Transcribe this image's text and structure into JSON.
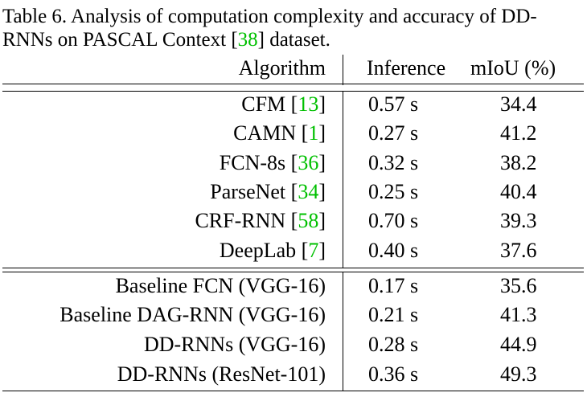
{
  "caption": {
    "prefix": "Table 6. Analysis of computation complexity and accuracy of DD-RNNs on PASCAL Context [",
    "ref": "38",
    "suffix": "] dataset."
  },
  "headers": {
    "algorithm": "Algorithm",
    "inference": "Inference",
    "miou": "mIoU (%)"
  },
  "group1": [
    {
      "name": "CFM",
      "ref": "13",
      "inference": "0.57 s",
      "miou": "34.4"
    },
    {
      "name": "CAMN",
      "ref": "1",
      "inference": "0.27 s",
      "miou": "41.2"
    },
    {
      "name": "FCN-8s",
      "ref": "36",
      "inference": "0.32 s",
      "miou": "38.2"
    },
    {
      "name": "ParseNet",
      "ref": "34",
      "inference": "0.25 s",
      "miou": "40.4"
    },
    {
      "name": "CRF-RNN",
      "ref": "58",
      "inference": "0.70 s",
      "miou": "39.3"
    },
    {
      "name": "DeepLab",
      "ref": "7",
      "inference": "0.40 s",
      "miou": "37.6"
    }
  ],
  "group2": [
    {
      "name": "Baseline FCN (VGG-16)",
      "inference": "0.17 s",
      "miou": "35.6"
    },
    {
      "name": "Baseline DAG-RNN (VGG-16)",
      "inference": "0.21 s",
      "miou": "41.3"
    },
    {
      "name": "DD-RNNs (VGG-16)",
      "inference": "0.28 s",
      "miou": "44.9"
    },
    {
      "name": "DD-RNNs (ResNet-101)",
      "inference": "0.36 s",
      "miou": "49.3"
    }
  ]
}
